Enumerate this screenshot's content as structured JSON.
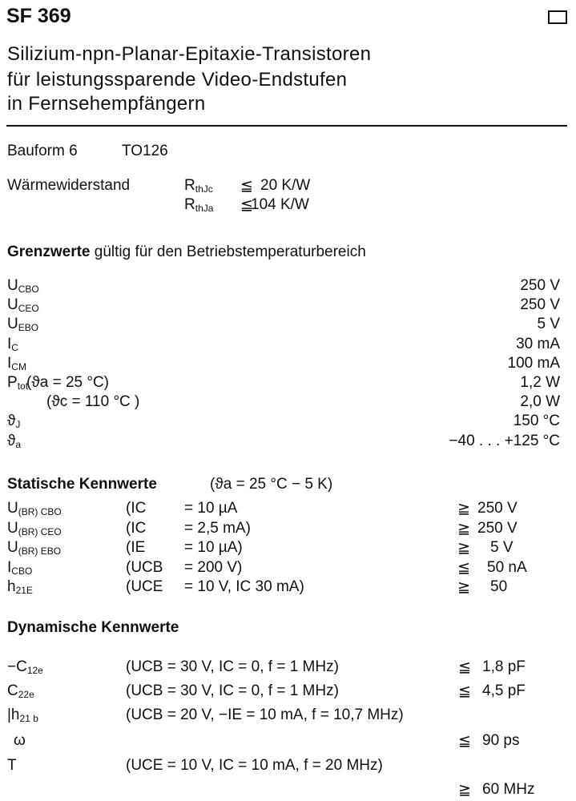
{
  "header": {
    "title": "SF 369",
    "subtitle_lines": [
      "Silizium-npn-Planar-Epitaxie-Transistoren",
      "für leistungssparende Video-Endstufen",
      "in Fernsehempfängern"
    ],
    "box_icon": "checkbox-icon"
  },
  "package": {
    "label": "Bauform 6",
    "type": "TO126"
  },
  "thermal": {
    "label": "Wärmewiderstand",
    "rows": [
      {
        "sym": "R",
        "sub": "thJc",
        "rel": "≦",
        "value": "20 K/W"
      },
      {
        "sym": "R",
        "sub": "thJa",
        "rel": "≦",
        "value": "104 K/W"
      }
    ]
  },
  "limits": {
    "heading_bold": "Grenzwerte",
    "heading_rest": "gültig für den Betriebstemperaturbereich",
    "rows": [
      {
        "sym": "U",
        "sub": "CBO",
        "cond": "",
        "value": "250 V"
      },
      {
        "sym": "U",
        "sub": "CEO",
        "cond": "",
        "value": "250 V"
      },
      {
        "sym": "U",
        "sub": "EBO",
        "cond": "",
        "value": "5 V"
      },
      {
        "sym": "I",
        "sub": "C",
        "cond": "",
        "value": "30 mA"
      },
      {
        "sym": "I",
        "sub": "CM",
        "cond": "",
        "value": "100 mA"
      },
      {
        "sym": "P",
        "sub": "tot",
        "cond": "(ϑa = 25 °C)",
        "value": "1,2 W"
      },
      {
        "sym": "",
        "sub": "",
        "cond": "(ϑc = 110 °C )",
        "value": "2,0 W"
      },
      {
        "sym": "ϑ",
        "sub": "J",
        "cond": "",
        "value": "150 °C"
      },
      {
        "sym": "ϑ",
        "sub": "a",
        "cond": "",
        "value": "−40 . . . +125 °C"
      }
    ]
  },
  "static": {
    "heading": "Statische Kennwerte",
    "heading_cond": "(ϑa = 25 °C − 5 K)",
    "rows": [
      {
        "sym": "U",
        "sub": "(BR) CBO",
        "param": "(IC",
        "cond": "= 10 µA",
        "rel": "≧",
        "value": "250 V"
      },
      {
        "sym": "U",
        "sub": "(BR) CEO",
        "param": "(IC",
        "cond": "= 2,5 mA)",
        "rel": "≧",
        "value": "250 V"
      },
      {
        "sym": "U",
        "sub": "(BR) EBO",
        "param": "(IE",
        "cond": "= 10 µA)",
        "rel": "≧",
        "value": "5 V"
      },
      {
        "sym": "I",
        "sub": "CBO",
        "param": "(UCB",
        "cond": "= 200 V)",
        "rel": "≦",
        "value": "50 nA"
      },
      {
        "sym": "h",
        "sub": "21E",
        "param": "(UCE",
        "cond": "= 10 V, IC 30 mA)",
        "rel": "≧",
        "value": "50"
      }
    ]
  },
  "dynamic": {
    "heading": "Dynamische Kennwerte",
    "rows": [
      {
        "sym": "−C",
        "sub": "12e",
        "cond": "(UCB = 30 V,   IC = 0, f = 1 MHz)",
        "rel": "≦",
        "value": "1,8 pF"
      },
      {
        "sym": "C",
        "sub": "22e",
        "cond": "(UCB = 30 V,   IC = 0, f = 1 MHz)",
        "rel": "≦",
        "value": "4,5 pF"
      },
      {
        "sym": "|h",
        "sub": "21 b",
        "cond": "(UCB = 20 V,  −IE = 10 mA, f = 10,7 MHz)",
        "rel": "",
        "value": ""
      },
      {
        "sym": "ω",
        "sub": "",
        "cond": "",
        "rel": "≦",
        "value": "90 ps"
      },
      {
        "sym": "T",
        "sub": "",
        "cond": "(UCE = 10 V, IC = 10 mA, f = 20 MHz)",
        "rel": "",
        "value": ""
      },
      {
        "sym": "",
        "sub": "",
        "cond": "",
        "rel": "≧",
        "value": "60 MHz"
      }
    ]
  }
}
